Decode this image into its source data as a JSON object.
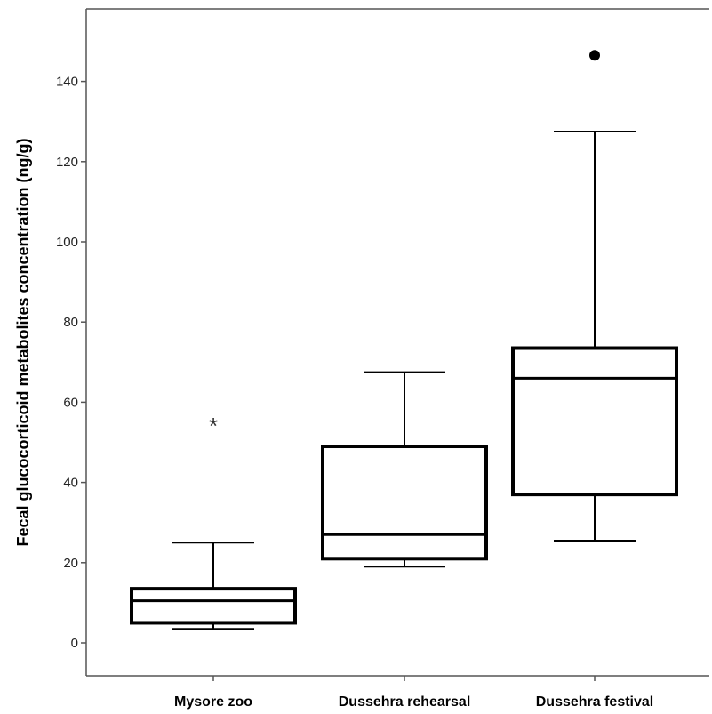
{
  "chart_data": {
    "type": "boxplot",
    "title": "",
    "xlabel": "",
    "ylabel": "Fecal glucocorticoid metabolites concentration (ng/g)",
    "ylim": [
      -8,
      158
    ],
    "yticks": [
      0,
      20,
      40,
      60,
      80,
      100,
      120,
      140
    ],
    "categories": [
      "Mysore  zoo",
      "Dussehra rehearsal",
      "Dussehra festival"
    ],
    "boxes": [
      {
        "category": "Mysore  zoo",
        "whisker_low": 3.5,
        "q1": 5,
        "median": 10.5,
        "q3": 13.5,
        "whisker_high": 25,
        "outliers": [
          {
            "value": 55,
            "marker": "star"
          }
        ]
      },
      {
        "category": "Dussehra rehearsal",
        "whisker_low": 19,
        "q1": 21,
        "median": 27,
        "q3": 49,
        "whisker_high": 67.5,
        "outliers": []
      },
      {
        "category": "Dussehra festival",
        "whisker_low": 25.5,
        "q1": 37,
        "median": 66,
        "q3": 73.5,
        "whisker_high": 127.5,
        "outliers": [
          {
            "value": 146.5,
            "marker": "circle"
          }
        ]
      }
    ],
    "grid": false,
    "colors": {
      "box_fill": "#ffffff",
      "stroke": "#000000",
      "axis": "#555555"
    }
  }
}
